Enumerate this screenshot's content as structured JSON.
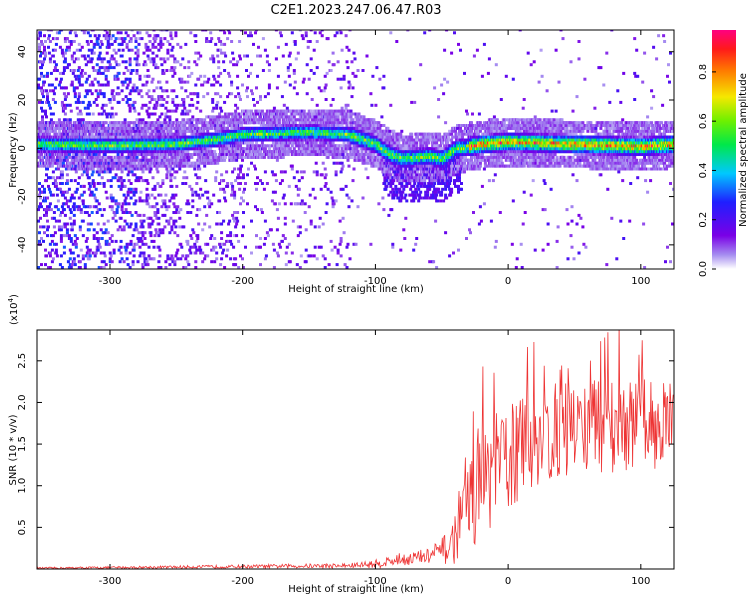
{
  "title": "C2E1.2023.247.06.47.R03",
  "chart_data": [
    {
      "type": "heatmap",
      "xlabel": "Height of straight line (km)",
      "ylabel": "Frequency (Hz)",
      "xlim": [
        -355,
        125
      ],
      "ylim": [
        -50,
        49
      ],
      "x_ticks": [
        -300,
        -200,
        -100,
        0,
        100
      ],
      "x_tick_labels": [
        "-300",
        "-200",
        "-100",
        "0",
        "100"
      ],
      "y_ticks": [
        -40,
        -20,
        0,
        20,
        40
      ],
      "y_tick_labels": [
        "-40",
        "-20",
        "0",
        "20",
        "40"
      ],
      "colorbar": {
        "label": "Normalized spectral amplitude",
        "range": [
          0,
          0.97
        ],
        "ticks": [
          0.0,
          0.2,
          0.4,
          0.6,
          0.8
        ],
        "tick_labels": [
          "0.0",
          "0.2",
          "0.4",
          "0.6",
          "0.8"
        ],
        "colormap": "rainbow (white, purple, blue, cyan, green, yellow, red, magenta)"
      },
      "ridge": {
        "x": [
          -355,
          -300,
          -250,
          -220,
          -200,
          -150,
          -120,
          -100,
          -90,
          -80,
          -60,
          -50,
          -40,
          -20,
          0,
          50,
          100,
          125
        ],
        "y": [
          1,
          0.5,
          1,
          3,
          5,
          6,
          5,
          1,
          -3,
          -5,
          -4,
          -5,
          -1,
          1,
          2,
          1,
          0,
          1
        ]
      },
      "grid": false
    },
    {
      "type": "line",
      "xlabel": "Height of straight line (km)",
      "ylabel": "SNR (10 * v/v)",
      "y_multiplier": "(x10^4)",
      "y_multiplier_base": "(x10",
      "y_multiplier_exp": "4",
      "y_multiplier_close": ")",
      "xlim": [
        -355,
        125
      ],
      "ylim": [
        0,
        2.87
      ],
      "x_ticks": [
        -300,
        -200,
        -100,
        0,
        100
      ],
      "x_tick_labels": [
        "-300",
        "-200",
        "-100",
        "0",
        "100"
      ],
      "y_ticks": [
        0.5,
        1.0,
        1.5,
        2.0,
        2.5
      ],
      "y_tick_labels": [
        "0.5",
        "1.0",
        "1.5",
        "2.0",
        "2.5"
      ],
      "series_color": "#ee3333",
      "envelope": {
        "x": [
          -355,
          -200,
          -120,
          -100,
          -80,
          -60,
          -45,
          -35,
          -25,
          -15,
          0,
          20,
          50,
          100,
          125
        ],
        "mean": [
          0.01,
          0.03,
          0.04,
          0.06,
          0.12,
          0.15,
          0.25,
          0.5,
          1.0,
          1.1,
          1.35,
          1.55,
          1.7,
          1.75,
          1.75
        ],
        "spread": [
          0.01,
          0.02,
          0.03,
          0.05,
          0.08,
          0.1,
          0.2,
          0.45,
          0.7,
          0.65,
          0.7,
          0.6,
          0.6,
          0.55,
          0.55
        ]
      },
      "grid": false
    }
  ]
}
